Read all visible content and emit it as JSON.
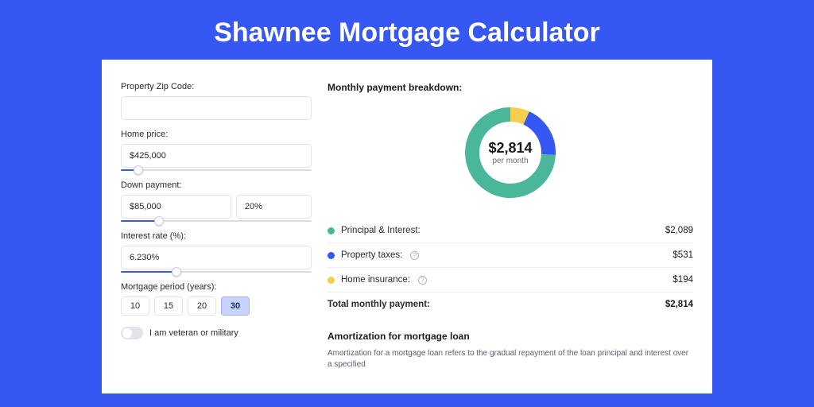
{
  "page": {
    "title": "Shawnee Mortgage Calculator",
    "background_color": "#3757f2",
    "panel_background": "#ffffff"
  },
  "form": {
    "zip": {
      "label": "Property Zip Code:",
      "value": ""
    },
    "price": {
      "label": "Home price:",
      "value": "$425,000",
      "slider_pct": 9
    },
    "down": {
      "label": "Down payment:",
      "amount": "$85,000",
      "percent": "20%",
      "slider_pct": 20
    },
    "rate": {
      "label": "Interest rate (%):",
      "value": "6.230%",
      "slider_pct": 29
    },
    "period": {
      "label": "Mortgage period (years):",
      "options": [
        "10",
        "15",
        "20",
        "30"
      ],
      "selected": "30"
    },
    "veteran": {
      "label": "I am veteran or military",
      "checked": false
    }
  },
  "breakdown": {
    "title": "Monthly payment breakdown:",
    "center_amount": "$2,814",
    "center_sub": "per month",
    "items": [
      {
        "label": "Principal & Interest:",
        "value": "$2,089",
        "pct": 74.2,
        "color": "#4bb79a",
        "help": false
      },
      {
        "label": "Property taxes:",
        "value": "$531",
        "pct": 18.9,
        "color": "#3757f2",
        "help": true
      },
      {
        "label": "Home insurance:",
        "value": "$194",
        "pct": 6.9,
        "color": "#f3cf4d",
        "help": true
      }
    ],
    "total_label": "Total monthly payment:",
    "total_value": "$2,814"
  },
  "amort": {
    "title": "Amortization for mortgage loan",
    "text": "Amortization for a mortgage loan refers to the gradual repayment of the loan principal and interest over a specified"
  },
  "donut": {
    "radius": 48,
    "stroke_width": 18,
    "background": "#ffffff"
  }
}
